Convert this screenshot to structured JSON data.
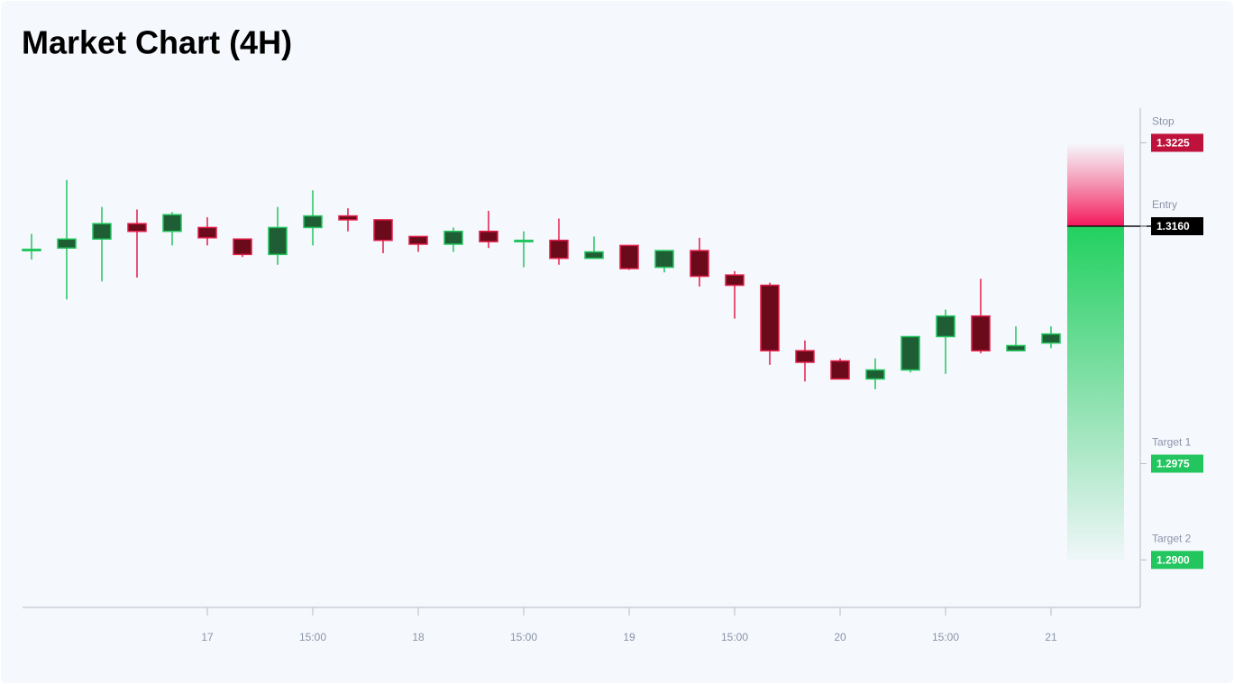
{
  "chart_data": {
    "type": "candlestick",
    "title": "Market Chart (4H)",
    "categories": [
      null,
      null,
      null,
      null,
      null,
      "17",
      null,
      null,
      "15:00",
      null,
      null,
      "18",
      null,
      null,
      "15:00",
      null,
      null,
      "19",
      null,
      null,
      "15:00",
      null,
      null,
      "20",
      null,
      null,
      "15:00",
      null,
      null,
      "21"
    ],
    "open": [
      1.3141,
      1.3143,
      1.315,
      1.3162,
      1.3156,
      1.3159,
      1.315,
      1.3138,
      1.3159,
      1.3168,
      1.3165,
      1.3152,
      1.3146,
      1.3156,
      1.3148,
      1.3149,
      1.3135,
      1.3145,
      1.3128,
      1.3141,
      1.3122,
      1.3114,
      1.3063,
      1.3055,
      1.3041,
      1.3048,
      1.3074,
      1.309,
      1.3063,
      1.3069
    ],
    "high": [
      1.3154,
      1.3196,
      1.3175,
      1.3173,
      1.3171,
      1.3167,
      1.315,
      1.3175,
      1.3188,
      1.3174,
      1.3165,
      1.3152,
      1.3159,
      1.3172,
      1.3156,
      1.3166,
      1.3152,
      1.3145,
      1.3141,
      1.3151,
      1.3125,
      1.3116,
      1.3071,
      1.3057,
      1.3057,
      1.3074,
      1.3095,
      1.3119,
      1.3082,
      1.3082
    ],
    "low": [
      1.3134,
      1.3103,
      1.3117,
      1.312,
      1.3145,
      1.3145,
      1.3136,
      1.313,
      1.3145,
      1.3156,
      1.3139,
      1.314,
      1.314,
      1.3143,
      1.3128,
      1.313,
      1.3135,
      1.3126,
      1.3124,
      1.3113,
      1.3088,
      1.3052,
      1.3039,
      1.3041,
      1.3033,
      1.3046,
      1.3045,
      1.3061,
      1.3063,
      1.3065
    ],
    "close": [
      1.3142,
      1.315,
      1.3162,
      1.3156,
      1.3169,
      1.3151,
      1.3138,
      1.3159,
      1.3168,
      1.3165,
      1.3149,
      1.3146,
      1.3156,
      1.3148,
      1.3149,
      1.3135,
      1.314,
      1.3127,
      1.3141,
      1.3121,
      1.3114,
      1.3063,
      1.3054,
      1.3041,
      1.3048,
      1.3074,
      1.309,
      1.3063,
      1.3067,
      1.3076
    ],
    "ylim": [
      1.2863,
      1.3252
    ],
    "up_color": "#22c55e",
    "down_color": "#e11d48",
    "levels": [
      {
        "name": "Stop",
        "value": 1.3225,
        "label": "1.3225",
        "color": "#be123c"
      },
      {
        "name": "Entry",
        "value": 1.316,
        "label": "1.3160",
        "color": "#000000"
      },
      {
        "name": "Target 1",
        "value": 1.2975,
        "label": "1.2975",
        "color": "#22c55e"
      },
      {
        "name": "Target 2",
        "value": 1.29,
        "label": "1.2900",
        "color": "#22c55e"
      }
    ]
  }
}
